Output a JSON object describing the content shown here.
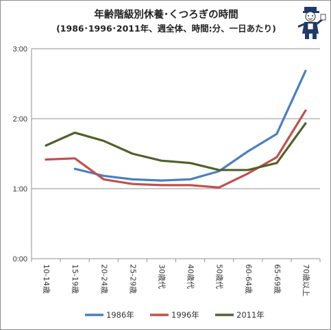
{
  "chart_data": {
    "type": "line",
    "title": "年齢階級別休養･くつろぎの時間",
    "subtitle": "(1986･1996･2011年、週全体、時間:分、一日あたり)",
    "categories": [
      "10-14歳",
      "15-19歳",
      "20-24歳",
      "25-29歳",
      "30歳代",
      "40歳代",
      "50歳代",
      "60-64歳",
      "65-69歳",
      "70歳以上"
    ],
    "y_unit": "minutes",
    "ylim": [
      0,
      180
    ],
    "y_ticks": [
      0,
      60,
      120,
      180
    ],
    "y_tick_labels": [
      "0:00",
      "1:00",
      "2:00",
      "3:00"
    ],
    "grid": "horizontal",
    "legend_position": "bottom",
    "series": [
      {
        "name": "1986年",
        "color": "#4a7fc1",
        "values": [
          null,
          77,
          71,
          68,
          67,
          68,
          75,
          92,
          107,
          161
        ]
      },
      {
        "name": "1996年",
        "color": "#c0504d",
        "values": [
          85,
          86,
          68,
          64,
          63,
          63,
          61,
          73,
          87,
          127
        ]
      },
      {
        "name": "2011年",
        "color": "#4f6228",
        "values": [
          97,
          108,
          101,
          90,
          84,
          82,
          76,
          76,
          82,
          116
        ]
      }
    ]
  }
}
